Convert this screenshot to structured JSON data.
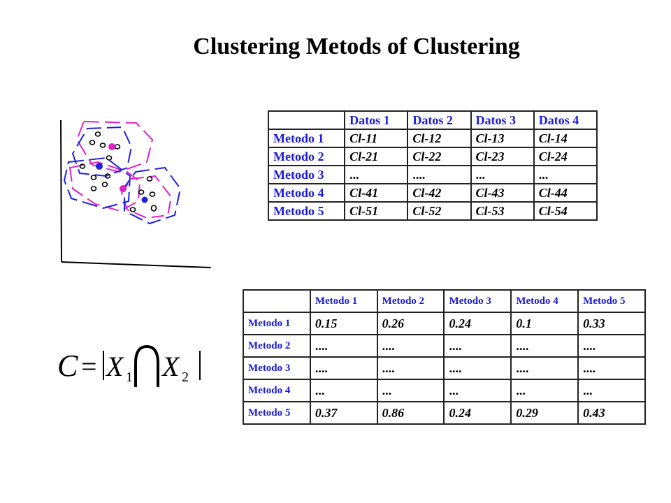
{
  "title": "Clustering Metods of Clustering",
  "table1": {
    "columns": [
      "Datos 1",
      "Datos 2",
      "Datos 3",
      "Datos 4"
    ],
    "rows": [
      {
        "label": "Metodo 1",
        "cells": [
          "Cl-11",
          "Cl-12",
          "Cl-13",
          "Cl-14"
        ]
      },
      {
        "label": "Metodo 2",
        "cells": [
          "Cl-21",
          "Cl-22",
          "Cl-23",
          "Cl-24"
        ]
      },
      {
        "label": "Metodo 3",
        "cells": [
          "...",
          "....",
          "...",
          "..."
        ]
      },
      {
        "label": "Metodo 4",
        "cells": [
          "Cl-41",
          "Cl-42",
          "Cl-43",
          "Cl-44"
        ]
      },
      {
        "label": "Metodo 5",
        "cells": [
          "Cl-51",
          "Cl-52",
          "Cl-53",
          "Cl-54"
        ]
      }
    ]
  },
  "table2": {
    "columns": [
      "Metodo 1",
      "Metodo 2",
      "Metodo 3",
      "Metodo 4",
      "Metodo 5"
    ],
    "rows": [
      {
        "label": "Metodo 1",
        "cells": [
          "0.15",
          "0.26",
          "0.24",
          "0.1",
          "0.33"
        ]
      },
      {
        "label": "Metodo 2",
        "cells": [
          "....",
          "....",
          "....",
          "....",
          "...."
        ]
      },
      {
        "label": "Metodo 3",
        "cells": [
          "....",
          "....",
          "....",
          "....",
          "...."
        ]
      },
      {
        "label": "Metodo 4",
        "cells": [
          "...",
          "...",
          "...",
          "...",
          "..."
        ]
      },
      {
        "label": "Metodo 5",
        "cells": [
          "0.37",
          "0.86",
          "0.24",
          "0.29",
          "0.43"
        ]
      }
    ]
  },
  "formula": {
    "lhs": "C",
    "eq": "=",
    "x": "X",
    "sub1": "1",
    "sub2": "2"
  },
  "colors": {
    "header_text": "#1a1adc",
    "cluster_blue": "#2020e0",
    "cluster_magenta": "#e020c8"
  }
}
